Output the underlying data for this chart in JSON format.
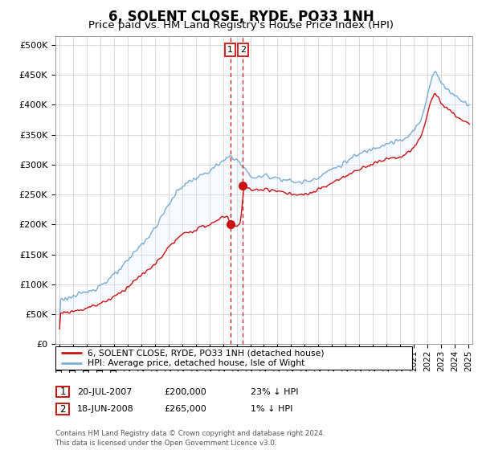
{
  "title": "6, SOLENT CLOSE, RYDE, PO33 1NH",
  "subtitle": "Price paid vs. HM Land Registry's House Price Index (HPI)",
  "title_fontsize": 12,
  "subtitle_fontsize": 9.5,
  "ylabel_ticks": [
    "£0",
    "£50K",
    "£100K",
    "£150K",
    "£200K",
    "£250K",
    "£300K",
    "£350K",
    "£400K",
    "£450K",
    "£500K"
  ],
  "ytick_vals": [
    0,
    50000,
    100000,
    150000,
    200000,
    250000,
    300000,
    350000,
    400000,
    450000,
    500000
  ],
  "ylim": [
    0,
    515000
  ],
  "xlim_start": 1994.7,
  "xlim_end": 2025.3,
  "hpi_color": "#7aadd4",
  "price_color": "#cc1111",
  "dashed_color": "#cc1111",
  "fill_color": "#ddeeff",
  "transaction1_x": 2007.54,
  "transaction1_y": 200000,
  "transaction2_x": 2008.46,
  "transaction2_y": 265000,
  "legend_label1": "6, SOLENT CLOSE, RYDE, PO33 1NH (detached house)",
  "legend_label2": "HPI: Average price, detached house, Isle of Wight",
  "table_row1_num": "1",
  "table_row1_date": "20-JUL-2007",
  "table_row1_price": "£200,000",
  "table_row1_hpi": "23% ↓ HPI",
  "table_row2_num": "2",
  "table_row2_date": "18-JUN-2008",
  "table_row2_price": "£265,000",
  "table_row2_hpi": "1% ↓ HPI",
  "footer": "Contains HM Land Registry data © Crown copyright and database right 2024.\nThis data is licensed under the Open Government Licence v3.0.",
  "background_color": "#ffffff",
  "grid_color": "#cccccc",
  "hpi_years": [
    1995,
    1995.5,
    1996,
    1996.5,
    1997,
    1997.5,
    1998,
    1998.5,
    1999,
    1999.5,
    2000,
    2000.5,
    2001,
    2001.5,
    2002,
    2002.5,
    2003,
    2003.5,
    2004,
    2004.5,
    2005,
    2005.5,
    2006,
    2006.5,
    2007,
    2007.25,
    2007.5,
    2007.75,
    2008,
    2008.25,
    2008.5,
    2008.75,
    2009,
    2009.5,
    2010,
    2010.5,
    2011,
    2011.5,
    2012,
    2012.5,
    2013,
    2013.5,
    2014,
    2014.5,
    2015,
    2015.5,
    2016,
    2016.5,
    2017,
    2017.5,
    2018,
    2018.5,
    2019,
    2019.5,
    2020,
    2020.5,
    2021,
    2021.5,
    2022,
    2022.25,
    2022.5,
    2022.75,
    2023,
    2023.5,
    2024,
    2024.5,
    2025
  ],
  "hpi_vals": [
    75000,
    77000,
    80000,
    83000,
    88000,
    93000,
    99000,
    107000,
    116000,
    127000,
    140000,
    155000,
    168000,
    180000,
    195000,
    215000,
    235000,
    252000,
    265000,
    272000,
    278000,
    283000,
    290000,
    298000,
    306000,
    310000,
    315000,
    312000,
    308000,
    300000,
    295000,
    288000,
    280000,
    278000,
    282000,
    280000,
    278000,
    275000,
    272000,
    270000,
    272000,
    275000,
    280000,
    287000,
    293000,
    298000,
    305000,
    312000,
    318000,
    323000,
    328000,
    332000,
    336000,
    338000,
    340000,
    345000,
    358000,
    375000,
    420000,
    445000,
    455000,
    448000,
    435000,
    425000,
    415000,
    408000,
    400000
  ],
  "price_years": [
    1995,
    1995.5,
    1996,
    1996.5,
    1997,
    1997.5,
    1998,
    1998.5,
    1999,
    1999.5,
    2000,
    2000.5,
    2001,
    2001.5,
    2002,
    2002.5,
    2003,
    2003.5,
    2004,
    2004.5,
    2005,
    2005.5,
    2006,
    2006.5,
    2007,
    2007.25,
    2007.5,
    2007.75,
    2008,
    2008.25,
    2008.5,
    2008.75,
    2009,
    2009.5,
    2010,
    2010.5,
    2011,
    2011.5,
    2012,
    2012.5,
    2013,
    2013.5,
    2014,
    2014.5,
    2015,
    2015.5,
    2016,
    2016.5,
    2017,
    2017.5,
    2018,
    2018.5,
    2019,
    2019.5,
    2020,
    2020.5,
    2021,
    2021.5,
    2022,
    2022.25,
    2022.5,
    2022.75,
    2023,
    2023.5,
    2024,
    2024.5,
    2025
  ],
  "price_vals": [
    52000,
    53500,
    55500,
    57500,
    61000,
    64500,
    68500,
    74000,
    80000,
    87500,
    96500,
    107000,
    116000,
    124000,
    134500,
    148500,
    162500,
    174000,
    183000,
    188000,
    192000,
    196000,
    200500,
    206000,
    213000,
    216000,
    200000,
    198000,
    196000,
    207000,
    265000,
    262000,
    258000,
    256000,
    260000,
    258000,
    256000,
    253000,
    250000,
    248500,
    250000,
    253500,
    258000,
    264000,
    270000,
    275000,
    281000,
    287500,
    293000,
    298000,
    302000,
    306000,
    310000,
    312000,
    313000,
    318000,
    330000,
    346000,
    387000,
    410000,
    420000,
    413000,
    400000,
    392000,
    382000,
    375000,
    368000
  ]
}
